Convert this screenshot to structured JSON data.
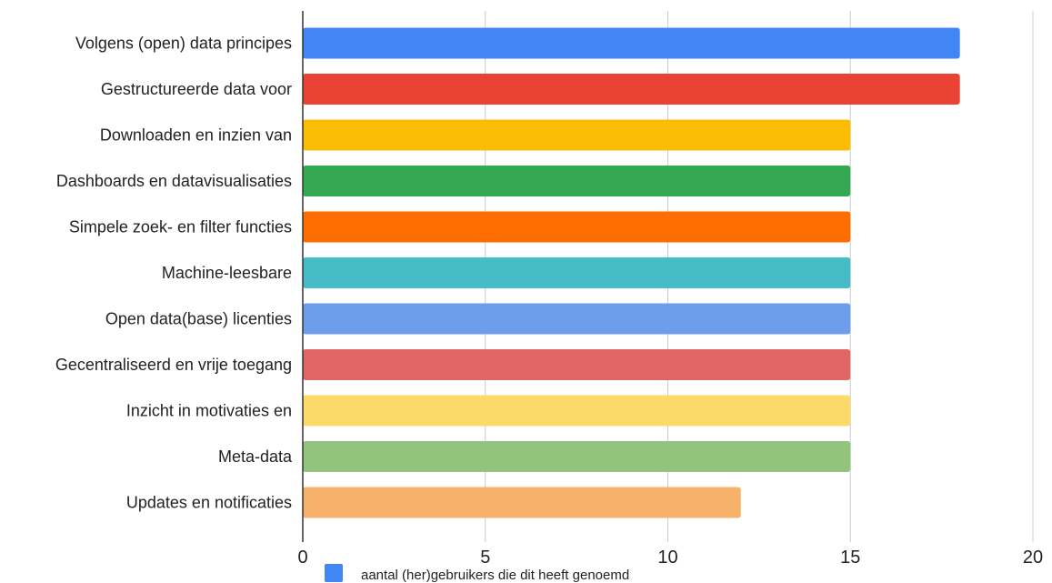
{
  "chart_data": {
    "type": "bar",
    "orientation": "horizontal",
    "categories": [
      "Volgens (open) data principes",
      "Gestructureerde data voor",
      "Downloaden en inzien van",
      "Dashboards en datavisualisaties",
      "Simpele zoek- en filter functies",
      "Machine-leesbare",
      "Open data(base) licenties",
      "Gecentraliseerd en vrije toegang",
      "Inzicht in motivaties en",
      "Meta-data",
      "Updates en notificaties"
    ],
    "values": [
      18,
      18,
      15,
      15,
      15,
      15,
      15,
      15,
      15,
      15,
      12
    ],
    "bar_colors": [
      "#4285f4",
      "#ea4335",
      "#fbbc04",
      "#34a853",
      "#ff6d01",
      "#46bdc6",
      "#6d9eeb",
      "#e06666",
      "#fcd96b",
      "#93c47d",
      "#f6b26b"
    ],
    "xlim": [
      0,
      20
    ],
    "x_ticks": [
      "0",
      "5",
      "10",
      "15",
      "20"
    ],
    "grid": true,
    "legend": {
      "position": "bottom",
      "label": "aantal (her)gebruikers die dit heeft genoemd",
      "color": "#4285f4"
    }
  }
}
